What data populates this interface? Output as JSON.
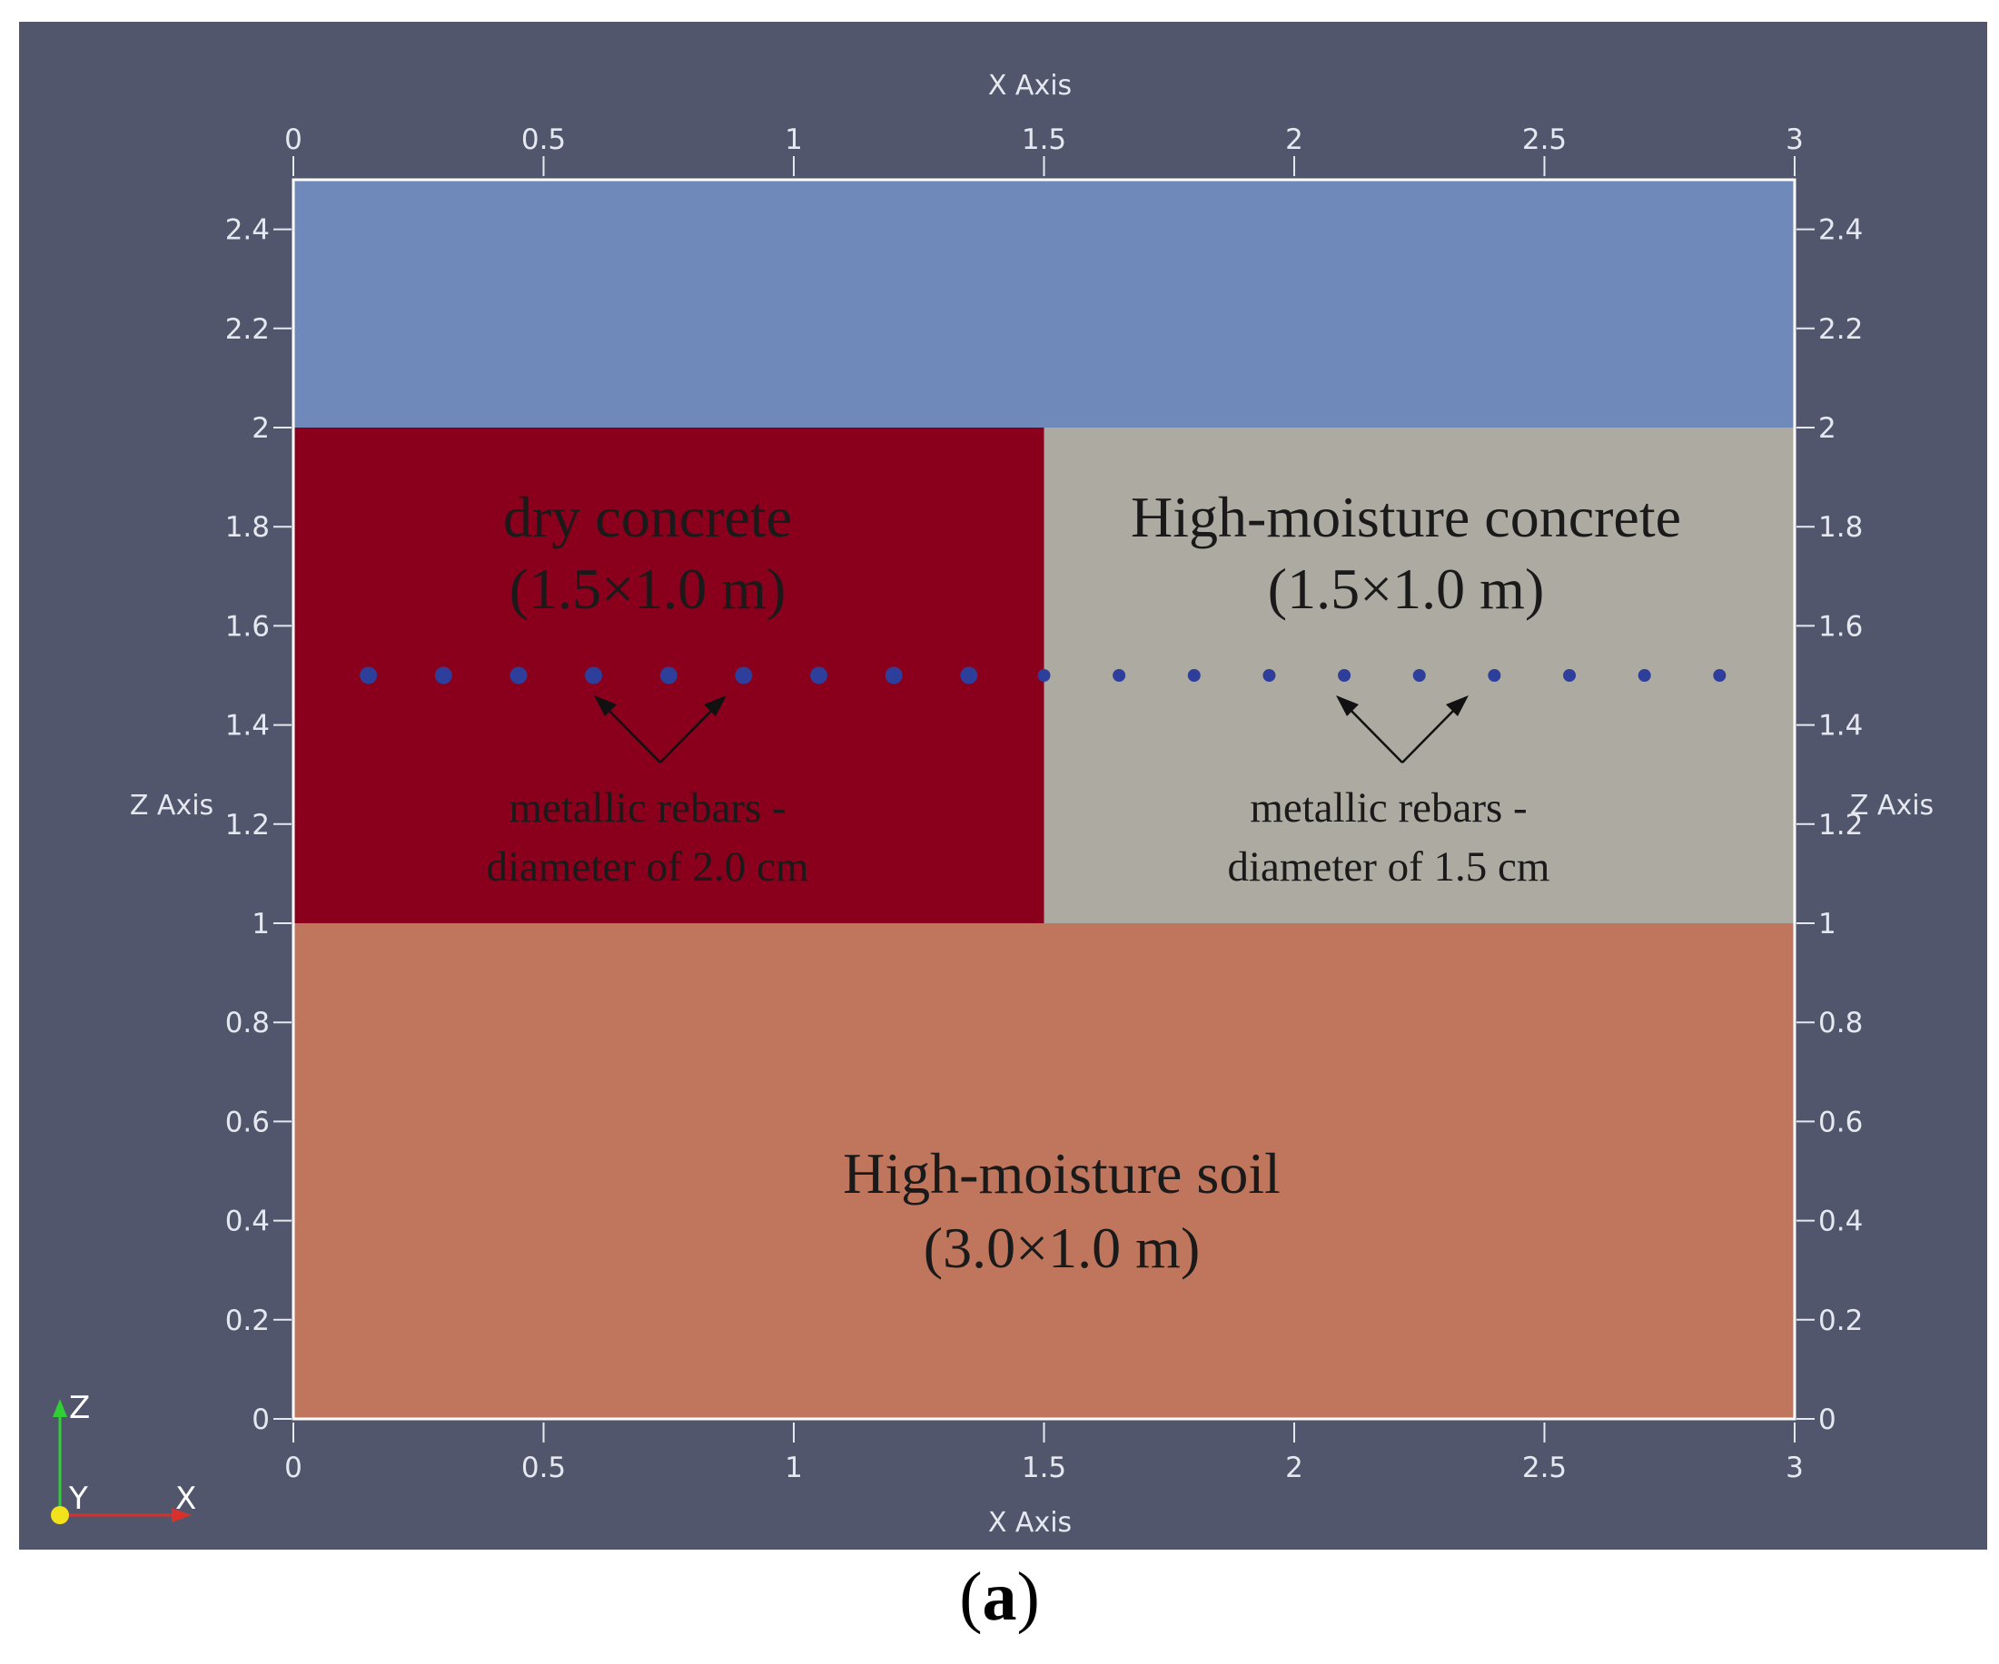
{
  "viewport_bg": "#52566c",
  "axes": {
    "x_title": "X Axis",
    "z_title": "Z Axis",
    "x_ticks": [
      "0",
      "0.5",
      "1",
      "1.5",
      "2",
      "2.5",
      "3"
    ],
    "z_ticks": [
      "0",
      "0.2",
      "0.4",
      "0.6",
      "0.8",
      "1",
      "1.2",
      "1.4",
      "1.6",
      "1.8",
      "2",
      "2.2",
      "2.4"
    ],
    "x_range": [
      0,
      3
    ],
    "z_range": [
      0,
      2.5
    ]
  },
  "regions": [
    {
      "id": "air",
      "x0": 0,
      "x1": 3,
      "z0": 2,
      "z1": 2.5,
      "color": "#6f89ba"
    },
    {
      "id": "dry-concrete",
      "x0": 0,
      "x1": 1.5,
      "z0": 1,
      "z1": 2,
      "color": "#8a001c"
    },
    {
      "id": "wet-concrete",
      "x0": 1.5,
      "x1": 3,
      "z0": 1,
      "z1": 2,
      "color": "#adaaa2"
    },
    {
      "id": "soil",
      "x0": 0,
      "x1": 3,
      "z0": 0,
      "z1": 1,
      "color": "#bf765c"
    }
  ],
  "labels": {
    "dry_concrete_title": "dry concrete",
    "dry_concrete_size": "(1.5×1.0 m)",
    "wet_concrete_title": "High-moisture concrete",
    "wet_concrete_size": "(1.5×1.0 m)",
    "soil_title": "High-moisture soil",
    "soil_size": "(3.0×1.0 m)",
    "rebars_left_line1": "metallic rebars -",
    "rebars_left_line2": "diameter of 2.0 cm",
    "rebars_right_line1": "metallic rebars -",
    "rebars_right_line2": "diameter of 1.5 cm"
  },
  "rebars": {
    "z": 1.5,
    "color": "#2e3f9b",
    "left": {
      "x": [
        0.15,
        0.3,
        0.45,
        0.6,
        0.75,
        0.9,
        1.05,
        1.2,
        1.35
      ],
      "diameter_cm": 2.0
    },
    "right": {
      "x": [
        1.5,
        1.65,
        1.8,
        1.95,
        2.1,
        2.25,
        2.4,
        2.55,
        2.7,
        2.85
      ],
      "diameter_cm": 1.5
    }
  },
  "orientation": {
    "z": "Z",
    "y": "Y",
    "x": "X"
  },
  "caption": {
    "open": "(",
    "letter": "a",
    "close": ")"
  }
}
